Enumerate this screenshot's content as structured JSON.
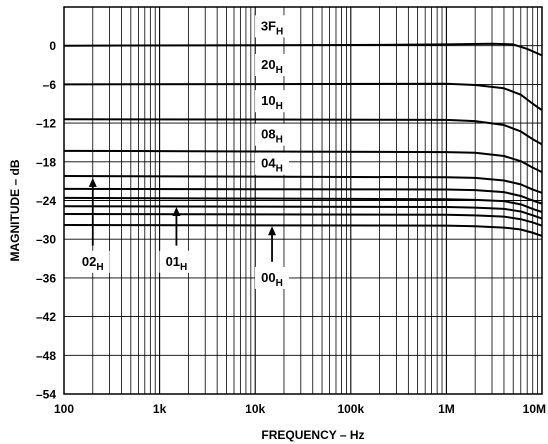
{
  "chart_data": {
    "type": "line",
    "title": "",
    "xlabel": "FREQUENCY – Hz",
    "ylabel": "MAGNITUDE – dB",
    "x_scale": "log",
    "xlim": [
      100,
      10000000
    ],
    "ylim": [
      -54,
      6
    ],
    "x_ticks": [
      {
        "value": 100,
        "label": "100"
      },
      {
        "value": 1000,
        "label": "1k"
      },
      {
        "value": 10000,
        "label": "10k"
      },
      {
        "value": 100000,
        "label": "100k"
      },
      {
        "value": 1000000,
        "label": "1M"
      },
      {
        "value": 10000000,
        "label": "10M"
      }
    ],
    "y_ticks": [
      {
        "value": 0,
        "label": "0"
      },
      {
        "value": -6,
        "label": "–6"
      },
      {
        "value": -12,
        "label": "–12"
      },
      {
        "value": -18,
        "label": "–18"
      },
      {
        "value": -24,
        "label": "–24"
      },
      {
        "value": -30,
        "label": "–30"
      },
      {
        "value": -36,
        "label": "–36"
      },
      {
        "value": -42,
        "label": "–42"
      },
      {
        "value": -48,
        "label": "–48"
      },
      {
        "value": -54,
        "label": "–54"
      }
    ],
    "grid": true,
    "series": [
      {
        "values": [
          [
            100,
            0.0
          ],
          [
            100000,
            0.1
          ],
          [
            1000000,
            0.2
          ],
          [
            3000000,
            0.3
          ],
          [
            5000000,
            0.2
          ],
          [
            7000000,
            -0.5
          ],
          [
            10000000,
            -1.5
          ]
        ]
      },
      {
        "values": [
          [
            100,
            -6.0
          ],
          [
            1000000,
            -5.9
          ],
          [
            2000000,
            -6.1
          ],
          [
            4000000,
            -6.6
          ],
          [
            6000000,
            -7.6
          ],
          [
            8000000,
            -9.0
          ],
          [
            10000000,
            -10.0
          ]
        ]
      },
      {
        "values": [
          [
            100,
            -11.4
          ],
          [
            1000000,
            -11.5
          ],
          [
            2000000,
            -11.7
          ],
          [
            4000000,
            -12.3
          ],
          [
            6000000,
            -13.3
          ],
          [
            8000000,
            -14.5
          ],
          [
            10000000,
            -15.3
          ]
        ]
      },
      {
        "values": [
          [
            100,
            -16.3
          ],
          [
            1000000,
            -16.5
          ],
          [
            2000000,
            -16.6
          ],
          [
            4000000,
            -17.1
          ],
          [
            6000000,
            -17.9
          ],
          [
            8000000,
            -18.9
          ],
          [
            10000000,
            -19.6
          ]
        ]
      },
      {
        "values": [
          [
            100,
            -20.2
          ],
          [
            1000000,
            -20.4
          ],
          [
            2000000,
            -20.5
          ],
          [
            4000000,
            -20.9
          ],
          [
            6000000,
            -21.5
          ],
          [
            8000000,
            -22.3
          ],
          [
            10000000,
            -22.8
          ]
        ]
      },
      {
        "values": [
          [
            100,
            -22.2
          ],
          [
            1000000,
            -22.3
          ],
          [
            2000000,
            -22.4
          ],
          [
            4000000,
            -22.7
          ],
          [
            6000000,
            -23.3
          ],
          [
            8000000,
            -24.0
          ],
          [
            10000000,
            -24.5
          ]
        ]
      },
      {
        "values": [
          [
            100,
            -23.6
          ],
          [
            1000000,
            -23.8
          ],
          [
            2000000,
            -23.9
          ],
          [
            4000000,
            -24.1
          ],
          [
            6000000,
            -24.6
          ],
          [
            8000000,
            -25.3
          ],
          [
            10000000,
            -25.8
          ]
        ]
      },
      {
        "values": [
          [
            100,
            -24.9
          ],
          [
            1000000,
            -25.0
          ],
          [
            2000000,
            -25.1
          ],
          [
            4000000,
            -25.3
          ],
          [
            6000000,
            -25.7
          ],
          [
            8000000,
            -26.3
          ],
          [
            10000000,
            -26.8
          ]
        ]
      },
      {
        "values": [
          [
            100,
            -26.1
          ],
          [
            1000000,
            -26.2
          ],
          [
            2000000,
            -26.3
          ],
          [
            4000000,
            -26.5
          ],
          [
            6000000,
            -26.9
          ],
          [
            8000000,
            -27.4
          ],
          [
            10000000,
            -27.9
          ]
        ]
      },
      {
        "values": [
          [
            100,
            -27.8
          ],
          [
            1000000,
            -27.9
          ],
          [
            2000000,
            -28.0
          ],
          [
            4000000,
            -28.2
          ],
          [
            6000000,
            -28.5
          ],
          [
            8000000,
            -29.0
          ],
          [
            10000000,
            -29.5
          ]
        ]
      }
    ],
    "annotations": [
      {
        "main": "3F",
        "sub": "H",
        "x": 15000,
        "y": 3.0,
        "boxed": true
      },
      {
        "main": "20",
        "sub": "H",
        "x": 15000,
        "y": -3.0,
        "boxed": true
      },
      {
        "main": "10",
        "sub": "H",
        "x": 15000,
        "y": -8.6,
        "boxed": true
      },
      {
        "main": "08",
        "sub": "H",
        "x": 15000,
        "y": -13.8,
        "boxed": true
      },
      {
        "main": "04",
        "sub": "H",
        "x": 15000,
        "y": -18.3,
        "boxed": true
      },
      {
        "main": "02",
        "sub": "H",
        "x": 200,
        "y": -33.5,
        "boxed": true,
        "arrow_to": [
          200,
          -20.5
        ],
        "arrow_from_y": -31.0
      },
      {
        "main": "01",
        "sub": "H",
        "x": 1500,
        "y": -33.5,
        "boxed": true,
        "arrow_to": [
          1500,
          -25.0
        ],
        "arrow_from_y": -31.0
      },
      {
        "main": "00",
        "sub": "H",
        "x": 15000,
        "y": -36.0,
        "boxed": true,
        "arrow_to": [
          15000,
          -28.0
        ],
        "arrow_from_y": -33.5
      }
    ]
  }
}
